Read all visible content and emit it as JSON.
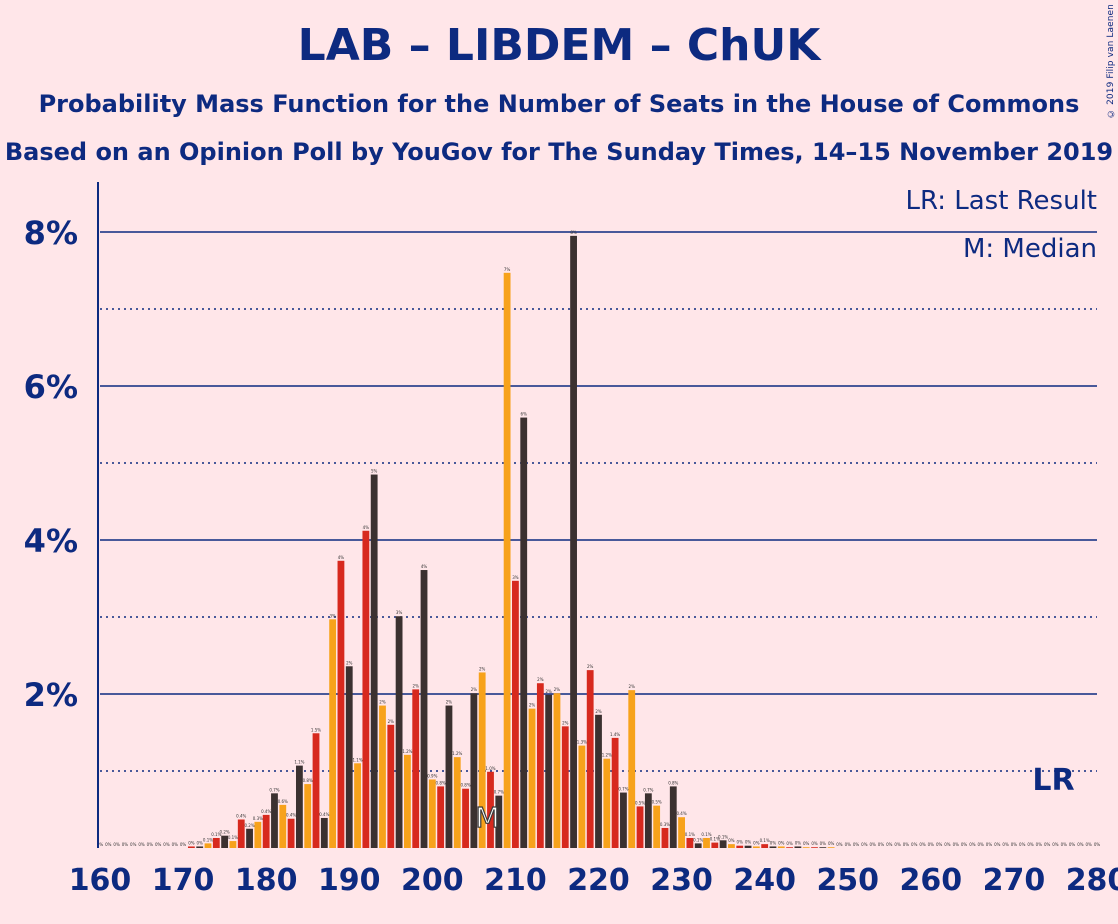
{
  "title": "LAB – LIBDEM – ChUK",
  "subtitle": "Probability Mass Function for the Number of Seats in the House of Commons",
  "subtitle2": "Based on an Opinion Poll by YouGov for The Sunday Times, 14–15 November 2019",
  "copyright": "© 2019 Filip van Laenen",
  "legend": {
    "last_result": "LR: Last Result",
    "median": "M: Median"
  },
  "markers": {
    "last_result_label": "LR",
    "last_result_seat": 275,
    "median_label": "M",
    "median_seat": 207
  },
  "colors": {
    "background": "#FFE6E9",
    "text": "#0D2A80",
    "gridline": "#0D2A80",
    "axis": "#0D2A80",
    "bars": [
      "#D7291E",
      "#3B3130",
      "#F7A21B"
    ]
  },
  "chart_data": {
    "type": "bar",
    "xlim": [
      160,
      280
    ],
    "ylim": [
      0,
      8.6
    ],
    "x_ticks": [
      160,
      170,
      180,
      190,
      200,
      210,
      220,
      230,
      240,
      250,
      260,
      270,
      280
    ],
    "y_ticks": [
      {
        "value": 2,
        "label": "2%"
      },
      {
        "value": 4,
        "label": "4%"
      },
      {
        "value": 6,
        "label": "6%"
      },
      {
        "value": 8,
        "label": "8%"
      }
    ],
    "minor_gridlines": [
      1,
      3,
      5,
      7
    ],
    "x": [
      160,
      161,
      162,
      163,
      164,
      165,
      166,
      167,
      168,
      169,
      170,
      171,
      172,
      173,
      174,
      175,
      176,
      177,
      178,
      179,
      180,
      181,
      182,
      183,
      184,
      185,
      186,
      187,
      188,
      189,
      190,
      191,
      192,
      193,
      194,
      195,
      196,
      197,
      198,
      199,
      200,
      201,
      202,
      203,
      204,
      205,
      206,
      207,
      208,
      209,
      210,
      211,
      212,
      213,
      214,
      215,
      216,
      217,
      218,
      219,
      220,
      221,
      222,
      223,
      224,
      225,
      226,
      227,
      228,
      229,
      230,
      231,
      232,
      233,
      234,
      235,
      236,
      237,
      238,
      239,
      240,
      241,
      242,
      243,
      244,
      245,
      246,
      247,
      248,
      249,
      250,
      251,
      252,
      253,
      254,
      255,
      256,
      257,
      258,
      259,
      260,
      261,
      262,
      263,
      264,
      265,
      266,
      267,
      268,
      269,
      270,
      271,
      272,
      273,
      274,
      275,
      276,
      277,
      278,
      279,
      280
    ],
    "values": [
      0,
      0,
      0,
      0,
      0,
      0,
      0,
      0,
      0,
      0,
      0,
      0.02,
      0.02,
      0.06,
      0.13,
      0.16,
      0.09,
      0.37,
      0.25,
      0.34,
      0.43,
      0.71,
      0.56,
      0.38,
      1.07,
      0.83,
      1.49,
      0.39,
      2.97,
      3.73,
      2.36,
      1.1,
      4.12,
      4.85,
      1.85,
      1.6,
      3.01,
      1.21,
      2.06,
      3.61,
      0.89,
      0.8,
      1.85,
      1.18,
      0.77,
      2.01,
      2.28,
      0.99,
      0.68,
      7.47,
      3.47,
      5.59,
      1.81,
      2.14,
      1.99,
      2.01,
      1.58,
      7.95,
      1.33,
      2.31,
      1.73,
      1.16,
      1.43,
      0.72,
      2.05,
      0.54,
      0.71,
      0.55,
      0.26,
      0.8,
      0.4,
      0.13,
      0.06,
      0.13,
      0.07,
      0.1,
      0.05,
      0.03,
      0.03,
      0.02,
      0.05,
      0.02,
      0.02,
      0.01,
      0.02,
      0.01,
      0.01,
      0.01,
      0.01,
      0,
      0,
      0,
      0,
      0,
      0,
      0,
      0,
      0,
      0,
      0,
      0,
      0,
      0,
      0,
      0,
      0,
      0,
      0,
      0,
      0,
      0,
      0,
      0,
      0,
      0,
      0,
      0,
      0,
      0,
      0,
      0
    ],
    "data_labels": [
      "0%",
      "0%",
      "0%",
      "0%",
      "0%",
      "0%",
      "0%",
      "0%",
      "0%",
      "0%",
      "0%",
      "0%",
      "0%",
      "0.1%",
      "0.1%",
      "0.2%",
      "0.1%",
      "0.4%",
      "0.2%",
      "0.3%",
      "0.4%",
      "0.7%",
      "0.6%",
      "0.4%",
      "1.1%",
      "0.8%",
      "1.5%",
      "0.4%",
      "3%",
      "4%",
      "2%",
      "1.1%",
      "4%",
      "5%",
      "2%",
      "2%",
      "3%",
      "1.2%",
      "2%",
      "4%",
      "0.9%",
      "0.8%",
      "2%",
      "1.2%",
      "0.8%",
      "2%",
      "2%",
      "1.0%",
      "0.7%",
      "7%",
      "3%",
      "6%",
      "2%",
      "2%",
      "2%",
      "2%",
      "2%",
      "8%",
      "1.3%",
      "2%",
      "2%",
      "1.2%",
      "1.4%",
      "0.7%",
      "2%",
      "0.5%",
      "0.7%",
      "0.5%",
      "0.3%",
      "0.8%",
      "0.4%",
      "0.1%",
      "0.1%",
      "0.1%",
      "0.1%",
      "0.1%",
      "0%",
      "0%",
      "0%",
      "0%",
      "0.1%",
      "0%",
      "0%",
      "0%",
      "0%",
      "0%",
      "0%",
      "0%",
      "0%",
      "0%",
      "0%",
      "0%",
      "0%",
      "0%",
      "0%",
      "0%",
      "0%",
      "0%",
      "0%",
      "0%",
      "0%",
      "0%",
      "0%",
      "0%",
      "0%",
      "0%",
      "0%",
      "0%",
      "0%",
      "0%",
      "0%",
      "0%",
      "0%",
      "0%",
      "0%",
      "0%",
      "0%",
      "0%",
      "0%",
      "0%",
      "0%"
    ]
  }
}
